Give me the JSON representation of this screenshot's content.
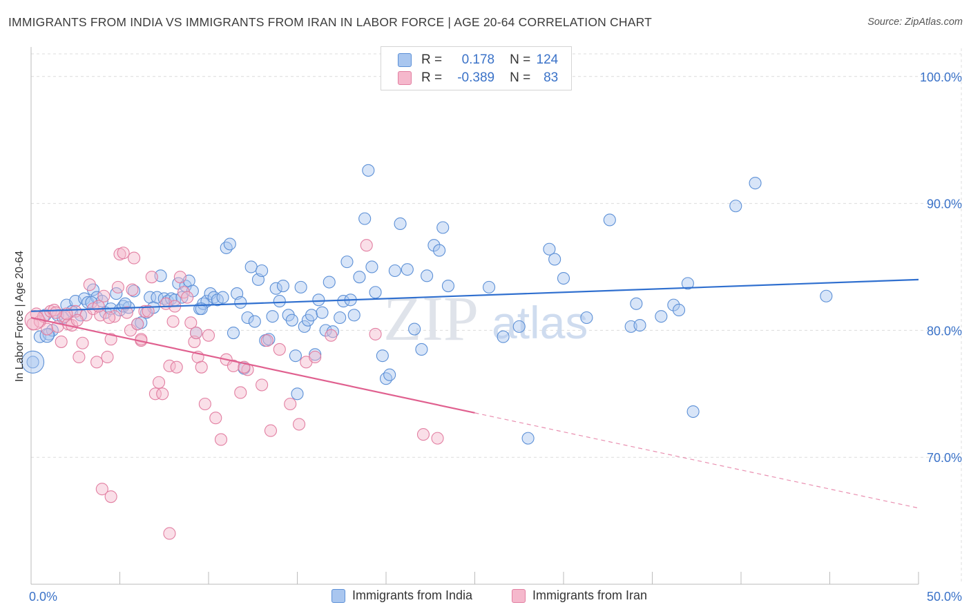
{
  "header": {
    "title": "IMMIGRANTS FROM INDIA VS IMMIGRANTS FROM IRAN IN LABOR FORCE | AGE 20-64 CORRELATION CHART",
    "source": "Source: ZipAtlas.com"
  },
  "stats": {
    "india": {
      "r_label": "R =",
      "r_value": "0.178",
      "n_label": "N =",
      "n_value": "124"
    },
    "iran": {
      "r_label": "R =",
      "r_value": "-0.389",
      "n_label": "N =",
      "n_value": "83"
    }
  },
  "legend": {
    "india": "Immigrants from India",
    "iran": "Immigrants from Iran"
  },
  "watermark": {
    "zip": "ZIP",
    "atlas": "atlas"
  },
  "colors": {
    "india_fill": "#a9c6ef",
    "india_stroke": "#5b8fd6",
    "india_line": "#2f6fcf",
    "iran_fill": "#f5b8cc",
    "iran_stroke": "#e27ea1",
    "iran_line": "#e0608f",
    "tick_label": "#3a72c8",
    "grid": "#dcdcdc"
  },
  "chart_data": {
    "type": "scatter",
    "title": "IMMIGRANTS FROM INDIA VS IMMIGRANTS FROM IRAN IN LABOR FORCE | AGE 20-64 CORRELATION CHART",
    "xlabel": "",
    "ylabel": "In Labor Force | Age 20-64",
    "xlim": [
      0,
      50
    ],
    "ylim": [
      60,
      102
    ],
    "x_tick_labels": [
      "0.0%",
      "50.0%"
    ],
    "y_ticks": [
      70,
      80,
      90,
      100
    ],
    "y_tick_labels": [
      "70.0%",
      "80.0%",
      "90.0%",
      "100.0%"
    ],
    "grid": true,
    "legend_position": "bottom",
    "series": [
      {
        "name": "Immigrants from India",
        "r": 0.178,
        "n": 124,
        "trend": {
          "x": [
            0,
            50
          ],
          "y": [
            81.5,
            84.0
          ],
          "solid_until": 50
        },
        "points": [
          [
            0.1,
            77.5
          ],
          [
            0.5,
            79.5
          ],
          [
            0.8,
            81.2
          ],
          [
            1.0,
            79.7
          ],
          [
            1.2,
            80.0
          ],
          [
            1.5,
            81.2
          ],
          [
            1.8,
            81.0
          ],
          [
            2.0,
            82.0
          ],
          [
            2.3,
            81.5
          ],
          [
            2.5,
            82.3
          ],
          [
            2.8,
            81.2
          ],
          [
            3.0,
            82.5
          ],
          [
            3.2,
            82.2
          ],
          [
            3.5,
            83.2
          ],
          [
            3.7,
            82.6
          ],
          [
            4.0,
            82.3
          ],
          [
            4.2,
            81.4
          ],
          [
            4.5,
            81.7
          ],
          [
            4.8,
            82.9
          ],
          [
            5.0,
            81.6
          ],
          [
            5.2,
            81.9
          ],
          [
            5.5,
            81.8
          ],
          [
            5.8,
            83.1
          ],
          [
            6.0,
            80.5
          ],
          [
            6.2,
            80.6
          ],
          [
            6.5,
            81.4
          ],
          [
            6.7,
            82.6
          ],
          [
            6.9,
            81.8
          ],
          [
            7.1,
            82.6
          ],
          [
            7.3,
            84.3
          ],
          [
            7.5,
            82.5
          ],
          [
            7.7,
            82.3
          ],
          [
            7.9,
            82.5
          ],
          [
            8.1,
            82.4
          ],
          [
            8.3,
            83.7
          ],
          [
            8.5,
            82.6
          ],
          [
            8.7,
            83.5
          ],
          [
            8.9,
            83.9
          ],
          [
            9.1,
            83.1
          ],
          [
            9.3,
            79.8
          ],
          [
            9.5,
            81.7
          ],
          [
            9.7,
            82.1
          ],
          [
            9.9,
            82.3
          ],
          [
            10.1,
            82.9
          ],
          [
            10.3,
            82.6
          ],
          [
            10.5,
            82.4
          ],
          [
            10.8,
            82.6
          ],
          [
            11.0,
            86.5
          ],
          [
            11.2,
            86.8
          ],
          [
            11.4,
            79.8
          ],
          [
            11.6,
            82.9
          ],
          [
            11.8,
            82.2
          ],
          [
            12.0,
            77.0
          ],
          [
            12.2,
            81.0
          ],
          [
            12.4,
            85.0
          ],
          [
            12.6,
            80.7
          ],
          [
            12.8,
            84.0
          ],
          [
            13.0,
            84.7
          ],
          [
            13.2,
            79.2
          ],
          [
            13.4,
            79.3
          ],
          [
            13.6,
            81.1
          ],
          [
            13.8,
            83.3
          ],
          [
            14.0,
            82.3
          ],
          [
            14.2,
            83.5
          ],
          [
            14.5,
            81.2
          ],
          [
            14.7,
            80.8
          ],
          [
            14.9,
            78.0
          ],
          [
            15.0,
            75.0
          ],
          [
            15.2,
            83.4
          ],
          [
            15.4,
            80.3
          ],
          [
            15.6,
            80.8
          ],
          [
            15.8,
            81.2
          ],
          [
            16.0,
            78.1
          ],
          [
            16.2,
            82.4
          ],
          [
            16.4,
            81.4
          ],
          [
            16.6,
            80.0
          ],
          [
            16.8,
            83.8
          ],
          [
            17.0,
            79.9
          ],
          [
            17.4,
            81.0
          ],
          [
            17.6,
            82.3
          ],
          [
            17.8,
            85.4
          ],
          [
            18.0,
            82.4
          ],
          [
            18.2,
            81.2
          ],
          [
            18.5,
            84.2
          ],
          [
            18.8,
            88.8
          ],
          [
            19.0,
            92.6
          ],
          [
            19.2,
            85.0
          ],
          [
            19.4,
            83.0
          ],
          [
            19.8,
            78.0
          ],
          [
            20.0,
            76.2
          ],
          [
            20.2,
            76.5
          ],
          [
            20.5,
            84.7
          ],
          [
            20.8,
            88.4
          ],
          [
            21.2,
            84.8
          ],
          [
            21.6,
            80.1
          ],
          [
            22.0,
            78.5
          ],
          [
            22.3,
            84.3
          ],
          [
            22.7,
            86.7
          ],
          [
            23.0,
            86.3
          ],
          [
            23.2,
            88.1
          ],
          [
            23.5,
            83.5
          ],
          [
            25.8,
            83.4
          ],
          [
            26.6,
            79.5
          ],
          [
            27.5,
            80.3
          ],
          [
            29.2,
            86.4
          ],
          [
            29.5,
            85.6
          ],
          [
            30.0,
            84.1
          ],
          [
            31.3,
            81.0
          ],
          [
            32.6,
            88.7
          ],
          [
            33.8,
            80.3
          ],
          [
            34.1,
            82.1
          ],
          [
            34.3,
            80.4
          ],
          [
            35.5,
            81.1
          ],
          [
            36.2,
            82.0
          ],
          [
            36.5,
            81.6
          ],
          [
            37.0,
            83.7
          ],
          [
            37.3,
            73.6
          ],
          [
            39.7,
            89.8
          ],
          [
            40.8,
            91.6
          ],
          [
            44.8,
            82.7
          ],
          [
            28.0,
            71.5
          ],
          [
            9.6,
            81.7
          ],
          [
            5.3,
            82.1
          ],
          [
            3.4,
            82.2
          ]
        ],
        "big_points": [
          [
            0.1,
            77.5,
            16
          ],
          [
            0.9,
            79.6,
            10
          ]
        ]
      },
      {
        "name": "Immigrants from Iran",
        "r": -0.389,
        "n": 83,
        "trend": {
          "x": [
            0,
            50
          ],
          "y": [
            81.0,
            66.0
          ],
          "solid_until": 25
        },
        "points": [
          [
            0.1,
            80.5
          ],
          [
            0.3,
            81.3
          ],
          [
            0.5,
            80.7
          ],
          [
            0.7,
            81.1
          ],
          [
            0.9,
            80.1
          ],
          [
            1.1,
            81.5
          ],
          [
            1.3,
            81.6
          ],
          [
            1.5,
            80.3
          ],
          [
            1.7,
            79.1
          ],
          [
            1.9,
            81.1
          ],
          [
            2.1,
            80.5
          ],
          [
            2.3,
            80.4
          ],
          [
            2.5,
            81.5
          ],
          [
            2.7,
            77.9
          ],
          [
            2.9,
            79.0
          ],
          [
            3.1,
            81.2
          ],
          [
            3.3,
            83.6
          ],
          [
            3.5,
            81.7
          ],
          [
            3.7,
            77.5
          ],
          [
            3.9,
            81.2
          ],
          [
            4.1,
            82.7
          ],
          [
            4.3,
            77.9
          ],
          [
            4.5,
            79.3
          ],
          [
            4.7,
            81.1
          ],
          [
            4.9,
            83.4
          ],
          [
            5.0,
            86.0
          ],
          [
            5.2,
            86.1
          ],
          [
            5.4,
            81.4
          ],
          [
            5.6,
            80.0
          ],
          [
            5.8,
            85.7
          ],
          [
            6.0,
            80.5
          ],
          [
            6.2,
            79.2
          ],
          [
            6.4,
            81.5
          ],
          [
            6.6,
            81.5
          ],
          [
            6.8,
            84.2
          ],
          [
            7.0,
            75.0
          ],
          [
            7.2,
            75.9
          ],
          [
            7.4,
            75.0
          ],
          [
            7.6,
            82.1
          ],
          [
            7.8,
            77.2
          ],
          [
            8.0,
            80.7
          ],
          [
            8.2,
            77.1
          ],
          [
            8.4,
            84.2
          ],
          [
            8.6,
            83.0
          ],
          [
            8.8,
            82.6
          ],
          [
            9.0,
            80.6
          ],
          [
            9.2,
            79.1
          ],
          [
            9.4,
            77.9
          ],
          [
            9.6,
            77.1
          ],
          [
            9.8,
            74.2
          ],
          [
            10.0,
            79.6
          ],
          [
            10.4,
            73.1
          ],
          [
            10.7,
            71.4
          ],
          [
            11.0,
            77.7
          ],
          [
            11.4,
            77.2
          ],
          [
            11.8,
            75.1
          ],
          [
            12.2,
            76.9
          ],
          [
            13.0,
            75.7
          ],
          [
            13.5,
            72.1
          ],
          [
            14.0,
            78.5
          ],
          [
            14.6,
            74.2
          ],
          [
            15.1,
            72.6
          ],
          [
            15.5,
            77.5
          ],
          [
            16.0,
            77.9
          ],
          [
            16.9,
            79.6
          ],
          [
            18.9,
            86.7
          ],
          [
            19.4,
            79.7
          ],
          [
            22.1,
            71.8
          ],
          [
            22.9,
            71.5
          ],
          [
            6.2,
            79.3
          ],
          [
            4.4,
            81.0
          ],
          [
            3.8,
            81.9
          ],
          [
            2.0,
            81.3
          ],
          [
            1.4,
            81.4
          ],
          [
            5.7,
            83.2
          ],
          [
            8.1,
            81.9
          ],
          [
            4.0,
            67.5
          ],
          [
            4.5,
            66.9
          ],
          [
            7.8,
            64.0
          ],
          [
            12.0,
            77.1
          ],
          [
            13.3,
            79.2
          ],
          [
            9.3,
            79.8
          ],
          [
            2.6,
            80.8
          ]
        ],
        "big_points": [
          [
            0.2,
            80.8,
            14
          ]
        ]
      }
    ]
  }
}
